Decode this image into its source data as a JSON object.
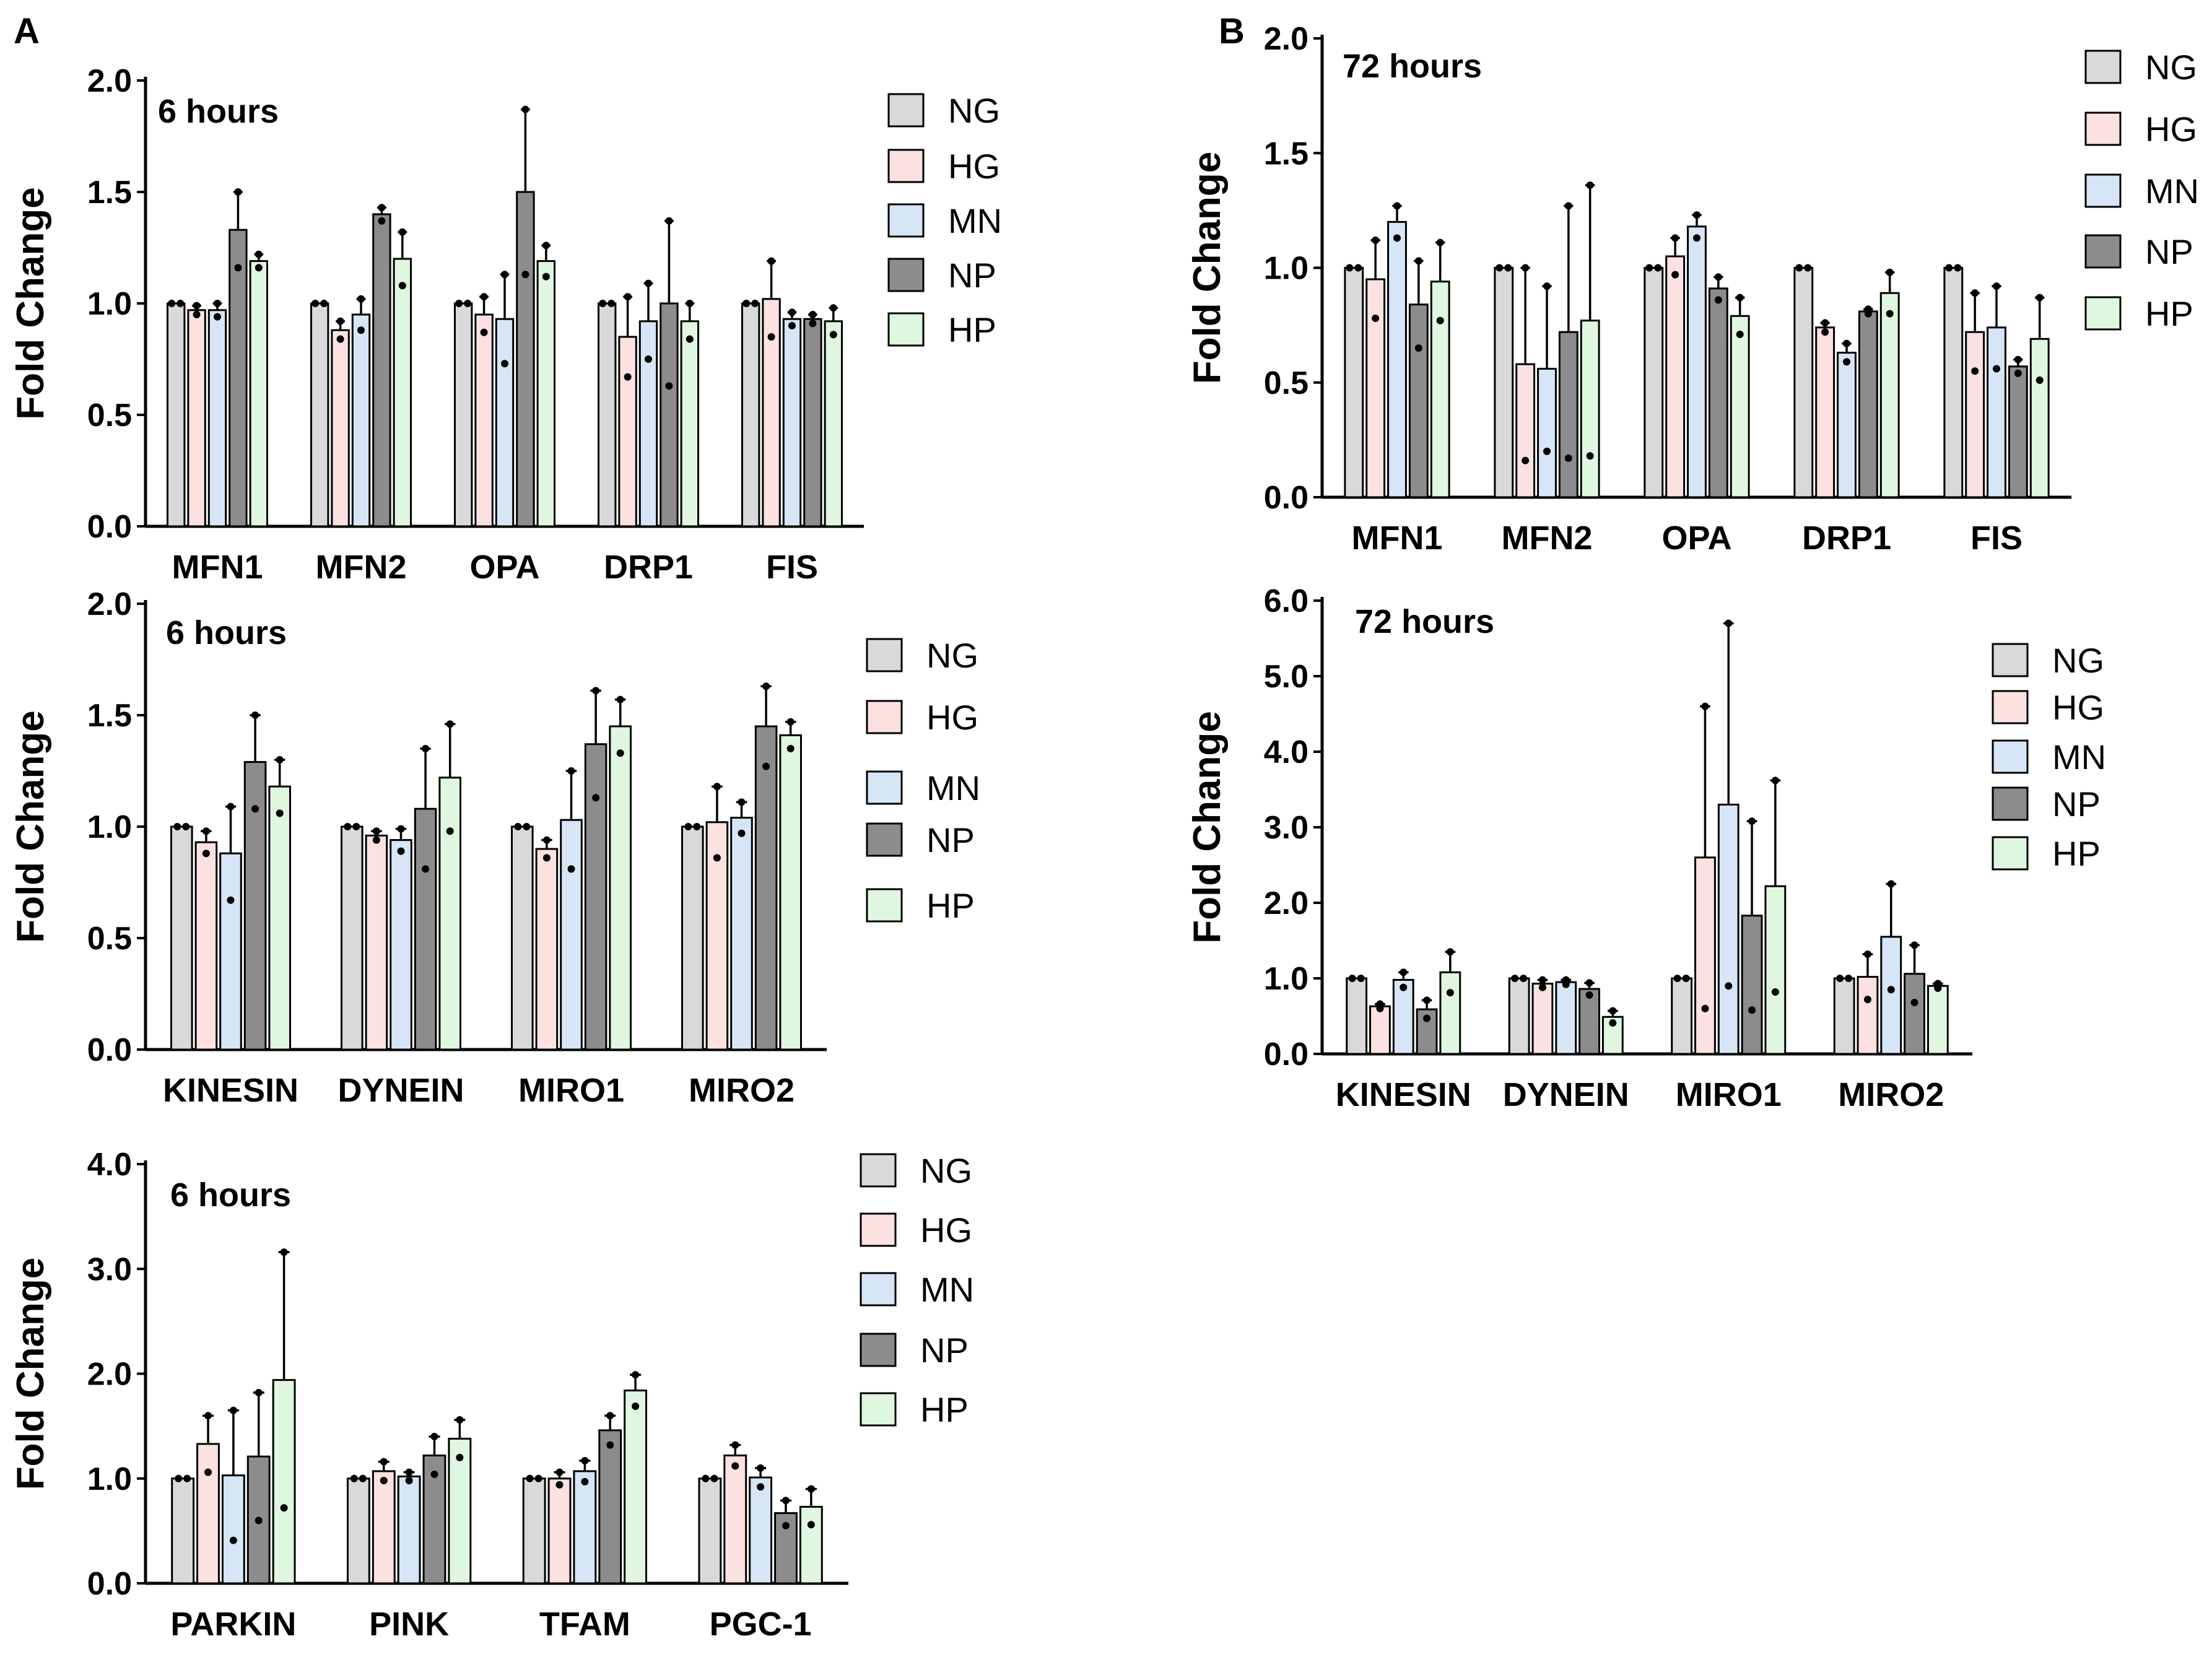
{
  "panel_labels": {
    "a": "A",
    "b": "B"
  },
  "series_colors": {
    "NG": "#d9d9d9",
    "HG": "#fbe1df",
    "MN": "#d6e6f7",
    "NP": "#8c8c8c",
    "HP": "#dff7df"
  },
  "chart_data": [
    {
      "type": "bar",
      "panel": "A",
      "annotation": "6 hours",
      "ylabel": "Fold Change",
      "ylim": [
        0,
        2.0
      ],
      "yticks": [
        "0.0",
        "0.5",
        "1.0",
        "1.5",
        "2.0"
      ],
      "legend": [
        "NG",
        "HG",
        "MN",
        "NP",
        "HP"
      ],
      "categories": [
        "MFN1",
        "MFN2",
        "OPA",
        "DRP1",
        "FIS"
      ],
      "series": [
        {
          "name": "NG",
          "values": [
            1.0,
            1.0,
            1.0,
            1.0,
            1.0
          ],
          "errors": [
            0.0,
            0.0,
            0.0,
            0.0,
            0.0
          ]
        },
        {
          "name": "HG",
          "values": [
            0.97,
            0.88,
            0.95,
            0.85,
            1.02
          ],
          "errors": [
            0.02,
            0.04,
            0.08,
            0.18,
            0.17
          ]
        },
        {
          "name": "MN",
          "values": [
            0.97,
            0.95,
            0.93,
            0.92,
            0.93
          ],
          "errors": [
            0.03,
            0.07,
            0.2,
            0.17,
            0.03
          ]
        },
        {
          "name": "NP",
          "values": [
            1.33,
            1.4,
            1.5,
            1.0,
            0.93
          ],
          "errors": [
            0.17,
            0.03,
            0.37,
            0.37,
            0.02
          ]
        },
        {
          "name": "HP",
          "values": [
            1.19,
            1.2,
            1.19,
            0.92,
            0.92
          ],
          "errors": [
            0.03,
            0.12,
            0.07,
            0.08,
            0.06
          ]
        }
      ]
    },
    {
      "type": "bar",
      "panel": "A",
      "annotation": "6 hours",
      "ylabel": "Fold Change",
      "ylim": [
        0,
        2.0
      ],
      "yticks": [
        "0.0",
        "0.5",
        "1.0",
        "1.5",
        "2.0"
      ],
      "legend": [
        "NG",
        "HG",
        "MN",
        "NP",
        "HP"
      ],
      "categories": [
        "KINESIN",
        "DYNEIN",
        "MIRO1",
        "MIRO2"
      ],
      "series": [
        {
          "name": "NG",
          "values": [
            1.0,
            1.0,
            1.0,
            1.0
          ],
          "errors": [
            0.0,
            0.0,
            0.0,
            0.0
          ]
        },
        {
          "name": "HG",
          "values": [
            0.93,
            0.96,
            0.9,
            1.02
          ],
          "errors": [
            0.05,
            0.02,
            0.04,
            0.16
          ]
        },
        {
          "name": "MN",
          "values": [
            0.88,
            0.94,
            1.03,
            1.04
          ],
          "errors": [
            0.21,
            0.05,
            0.22,
            0.07
          ]
        },
        {
          "name": "NP",
          "values": [
            1.29,
            1.08,
            1.37,
            1.45
          ],
          "errors": [
            0.21,
            0.27,
            0.24,
            0.18
          ]
        },
        {
          "name": "HP",
          "values": [
            1.18,
            1.22,
            1.45,
            1.41
          ],
          "errors": [
            0.12,
            0.24,
            0.12,
            0.06
          ]
        }
      ]
    },
    {
      "type": "bar",
      "panel": "A",
      "annotation": "6 hours",
      "ylabel": "Fold Change",
      "ylim": [
        0,
        4.0
      ],
      "yticks": [
        "0.0",
        "1.0",
        "2.0",
        "3.0",
        "4.0"
      ],
      "legend": [
        "NG",
        "HG",
        "MN",
        "NP",
        "HP"
      ],
      "categories": [
        "PARKIN",
        "PINK",
        "TFAM",
        "PGC-1"
      ],
      "series": [
        {
          "name": "NG",
          "values": [
            1.0,
            1.0,
            1.0,
            1.0
          ],
          "errors": [
            0.0,
            0.0,
            0.0,
            0.0
          ]
        },
        {
          "name": "HG",
          "values": [
            1.33,
            1.07,
            1.0,
            1.22
          ],
          "errors": [
            0.27,
            0.09,
            0.06,
            0.1
          ]
        },
        {
          "name": "MN",
          "values": [
            1.03,
            1.02,
            1.07,
            1.01
          ],
          "errors": [
            0.62,
            0.04,
            0.1,
            0.09
          ]
        },
        {
          "name": "NP",
          "values": [
            1.21,
            1.22,
            1.46,
            0.67
          ],
          "errors": [
            0.61,
            0.18,
            0.14,
            0.12
          ]
        },
        {
          "name": "HP",
          "values": [
            1.94,
            1.38,
            1.84,
            0.73
          ],
          "errors": [
            1.22,
            0.18,
            0.15,
            0.17
          ]
        }
      ]
    },
    {
      "type": "bar",
      "panel": "B",
      "annotation": "72 hours",
      "ylabel": "Fold Change",
      "ylim": [
        0,
        2.0
      ],
      "yticks": [
        "0.0",
        "0.5",
        "1.0",
        "1.5",
        "2.0"
      ],
      "legend": [
        "NG",
        "HG",
        "MN",
        "NP",
        "HP"
      ],
      "categories": [
        "MFN1",
        "MFN2",
        "OPA",
        "DRP1",
        "FIS"
      ],
      "series": [
        {
          "name": "NG",
          "values": [
            1.0,
            1.0,
            1.0,
            1.0,
            1.0
          ],
          "errors": [
            0.0,
            0.0,
            0.0,
            0.0,
            0.0
          ]
        },
        {
          "name": "HG",
          "values": [
            0.95,
            0.58,
            1.05,
            0.74,
            0.72
          ],
          "errors": [
            0.17,
            0.42,
            0.08,
            0.02,
            0.17
          ]
        },
        {
          "name": "MN",
          "values": [
            1.2,
            0.56,
            1.18,
            0.63,
            0.74
          ],
          "errors": [
            0.07,
            0.36,
            0.05,
            0.04,
            0.18
          ]
        },
        {
          "name": "NP",
          "values": [
            0.84,
            0.72,
            0.91,
            0.81,
            0.57
          ],
          "errors": [
            0.19,
            0.55,
            0.05,
            0.01,
            0.03
          ]
        },
        {
          "name": "HP",
          "values": [
            0.94,
            0.77,
            0.79,
            0.89,
            0.69
          ],
          "errors": [
            0.17,
            0.59,
            0.08,
            0.09,
            0.18
          ]
        }
      ]
    },
    {
      "type": "bar",
      "panel": "B",
      "annotation": "72 hours",
      "ylabel": "Fold Change",
      "ylim": [
        0,
        6.0
      ],
      "yticks": [
        "0.0",
        "1.0",
        "2.0",
        "3.0",
        "4.0",
        "5.0",
        "6.0"
      ],
      "legend": [
        "NG",
        "HG",
        "MN",
        "NP",
        "HP"
      ],
      "categories": [
        "KINESIN",
        "DYNEIN",
        "MIRO1",
        "MIRO2"
      ],
      "series": [
        {
          "name": "NG",
          "values": [
            1.0,
            1.0,
            1.0,
            1.0
          ],
          "errors": [
            0.0,
            0.0,
            0.0,
            0.0
          ]
        },
        {
          "name": "HG",
          "values": [
            0.63,
            0.93,
            2.6,
            1.02
          ],
          "errors": [
            0.03,
            0.05,
            2.0,
            0.3
          ]
        },
        {
          "name": "MN",
          "values": [
            0.98,
            0.95,
            3.3,
            1.55
          ],
          "errors": [
            0.1,
            0.03,
            2.4,
            0.7
          ]
        },
        {
          "name": "NP",
          "values": [
            0.59,
            0.86,
            1.83,
            1.06
          ],
          "errors": [
            0.12,
            0.08,
            1.25,
            0.38
          ]
        },
        {
          "name": "HP",
          "values": [
            1.08,
            0.49,
            2.22,
            0.9
          ],
          "errors": [
            0.27,
            0.08,
            1.4,
            0.03
          ]
        }
      ]
    }
  ]
}
